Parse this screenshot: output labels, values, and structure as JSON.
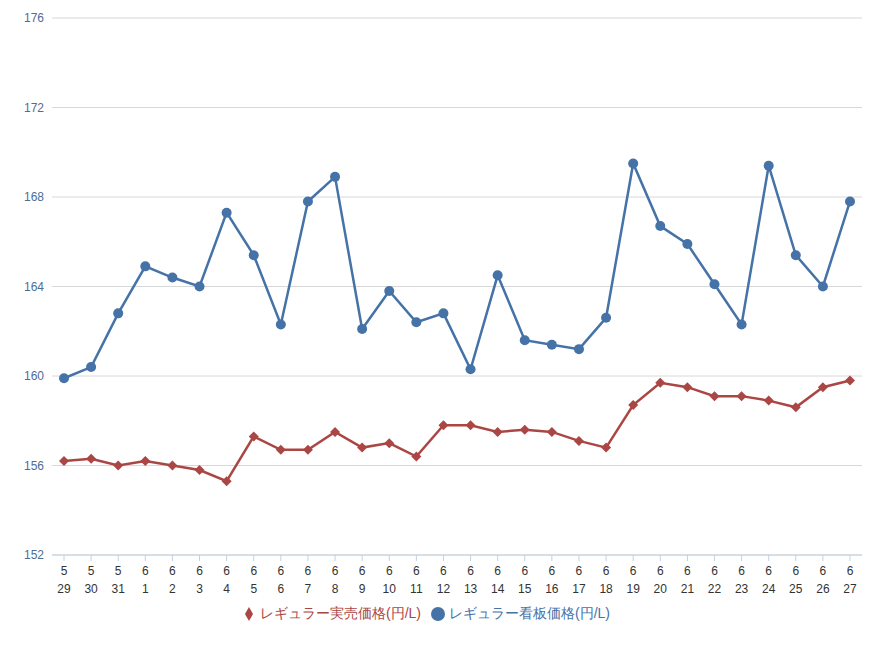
{
  "chart_data": {
    "type": "line",
    "categories": [
      "5\n29",
      "5\n30",
      "5\n31",
      "6\n1",
      "6\n2",
      "6\n3",
      "6\n4",
      "6\n5",
      "6\n6",
      "6\n7",
      "6\n8",
      "6\n9",
      "6\n10",
      "6\n11",
      "6\n12",
      "6\n13",
      "6\n14",
      "6\n15",
      "6\n16",
      "6\n17",
      "6\n18",
      "6\n19",
      "6\n20",
      "6\n21",
      "6\n22",
      "6\n23",
      "6\n24",
      "6\n25",
      "6\n26",
      "6\n27"
    ],
    "series": [
      {
        "name": "レギュラー看板価格(円/L)",
        "color": "#4572a7",
        "marker": "circle",
        "values": [
          159.9,
          160.4,
          162.8,
          164.9,
          164.4,
          164.0,
          167.3,
          165.4,
          162.3,
          167.8,
          168.9,
          162.1,
          163.8,
          162.4,
          162.8,
          160.3,
          164.5,
          161.6,
          161.4,
          161.2,
          162.6,
          169.5,
          166.7,
          165.9,
          164.1,
          162.3,
          169.4,
          165.4,
          164.0,
          167.8
        ]
      },
      {
        "name": "レギュラー実売価格(円/L)",
        "color": "#aa4643",
        "marker": "diamond",
        "values": [
          156.2,
          156.3,
          156.0,
          156.2,
          156.0,
          155.8,
          155.3,
          157.3,
          156.7,
          156.7,
          157.5,
          156.8,
          157.0,
          156.4,
          157.8,
          157.8,
          157.5,
          157.6,
          157.5,
          157.1,
          156.8,
          158.7,
          159.7,
          159.5,
          159.1,
          159.1,
          158.9,
          158.6,
          159.5,
          159.8
        ]
      }
    ],
    "ylim": [
      152,
      176
    ],
    "yticks": [
      152,
      156,
      160,
      164,
      168,
      172,
      176
    ],
    "grid": true,
    "legend": "bottom"
  }
}
